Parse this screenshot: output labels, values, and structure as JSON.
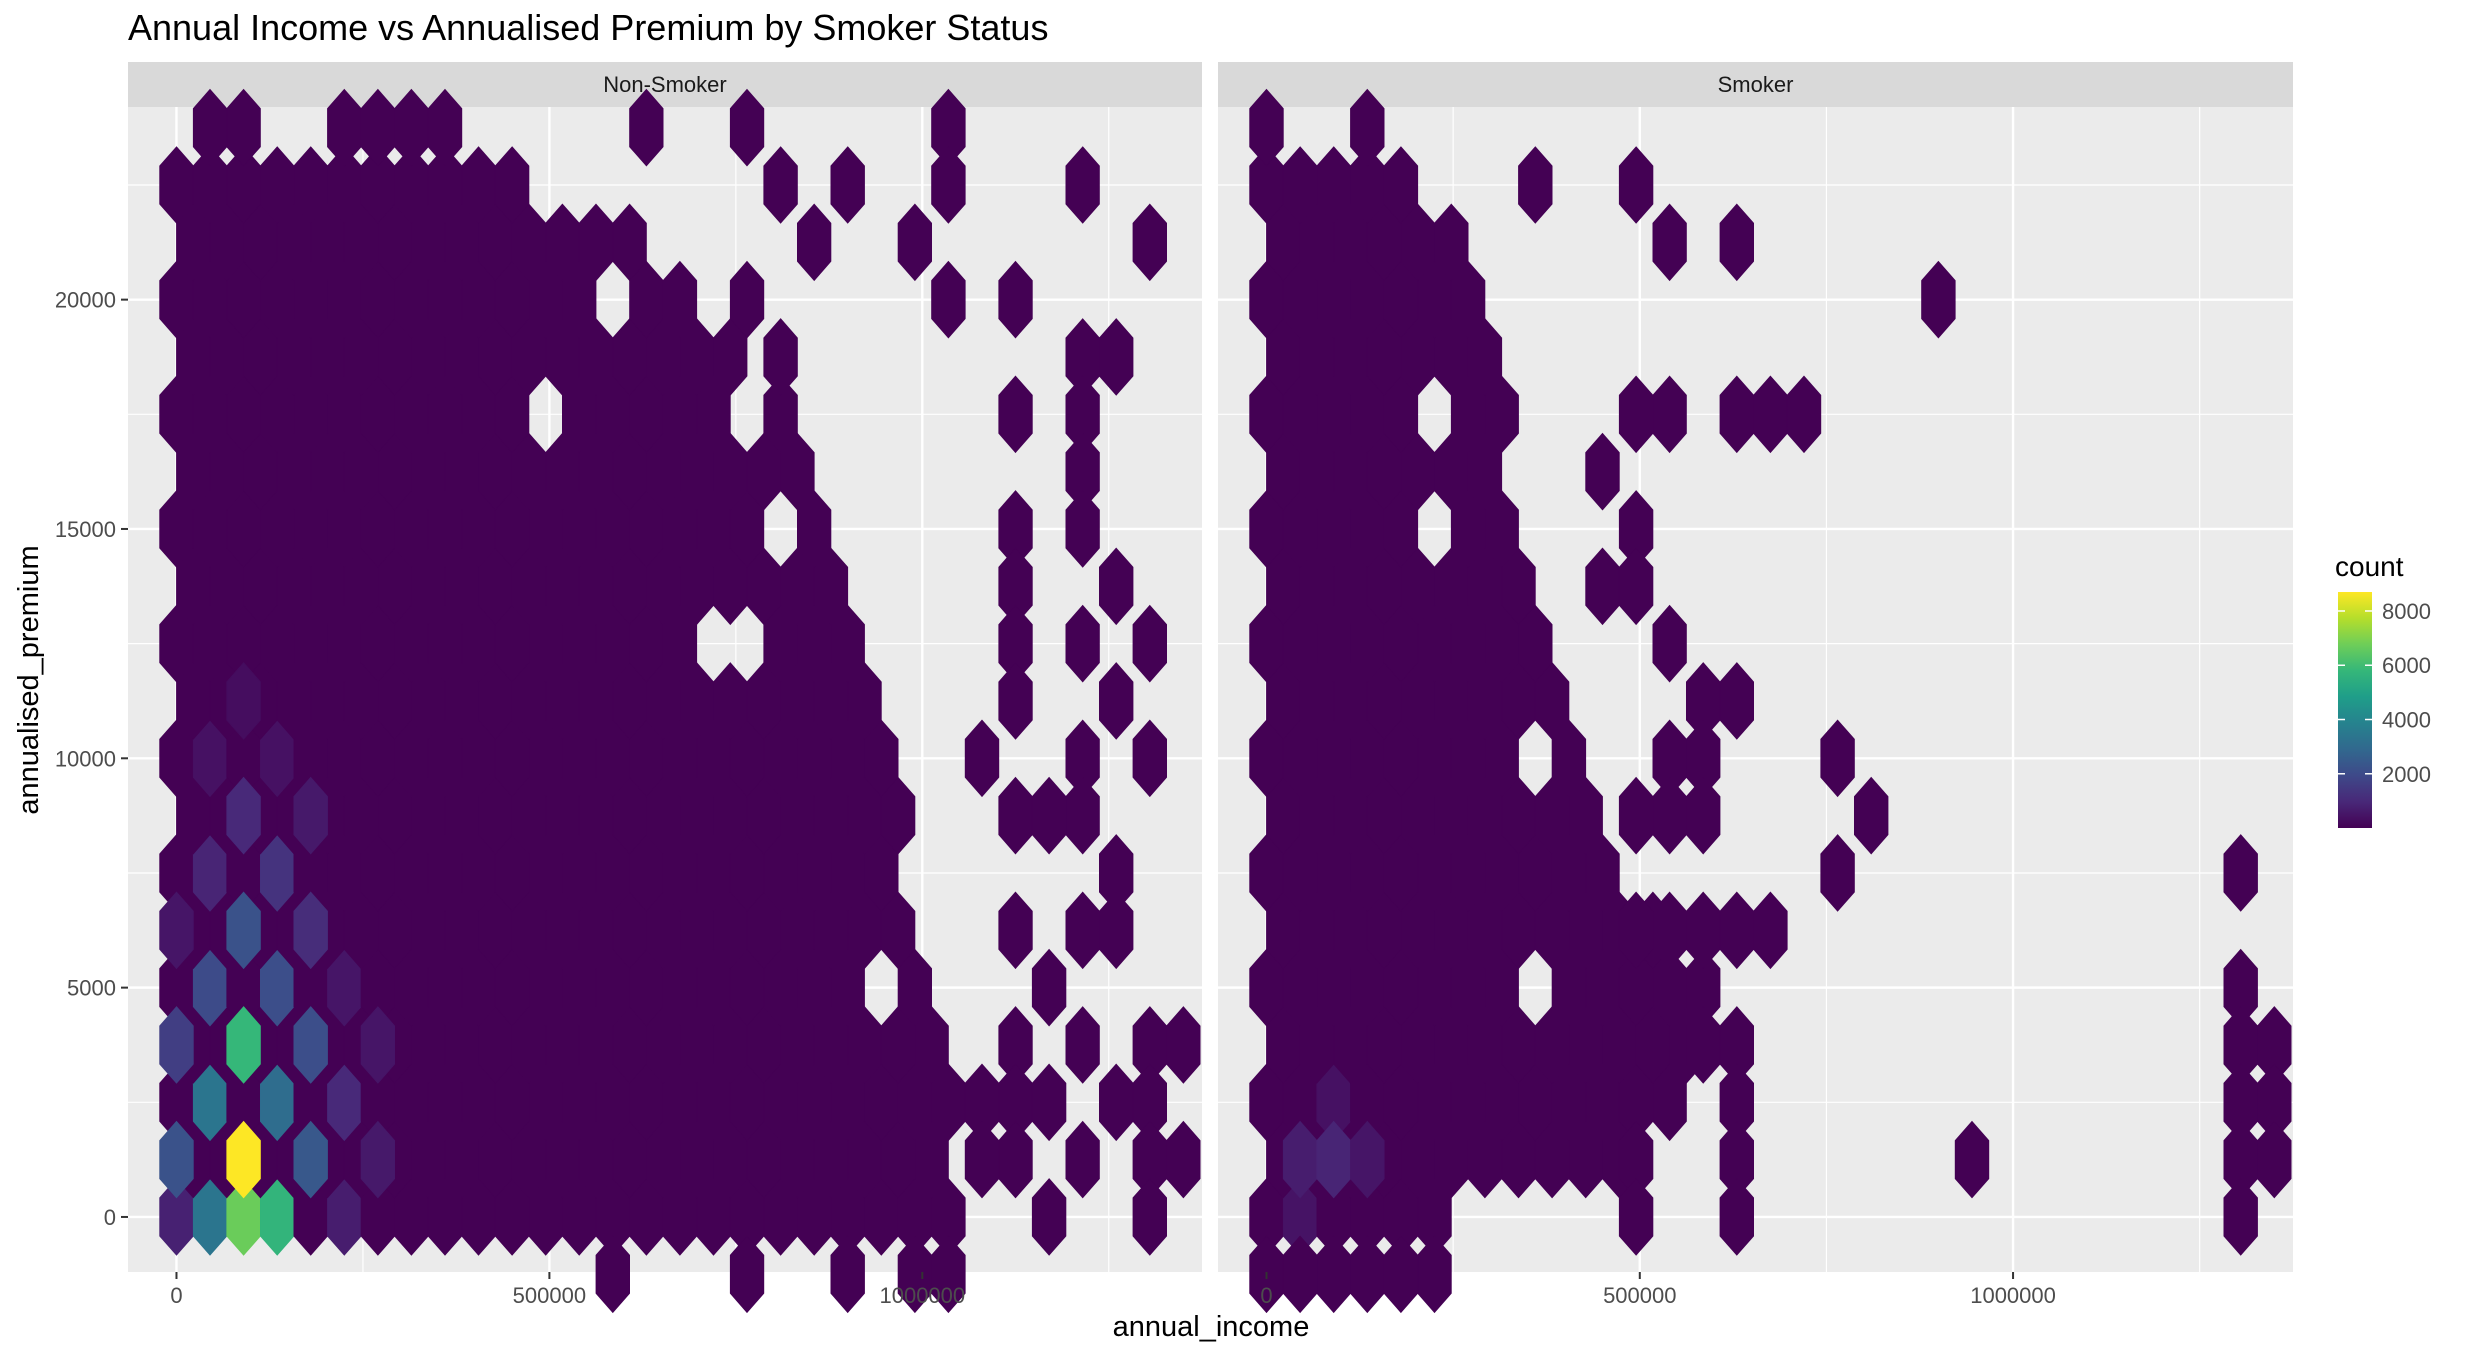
{
  "chart_data": {
    "type": "hexbin",
    "title": "Annual Income vs Annualised Premium by Smoker Status",
    "xlabel": "annual_income",
    "ylabel": "annualised_premium",
    "xlim": [
      -65000,
      1375000
    ],
    "ylim": [
      -1200,
      24200
    ],
    "x_ticks": [
      0,
      500000,
      1000000
    ],
    "x_tick_labels": [
      "0",
      "500000",
      "1000000"
    ],
    "y_ticks": [
      0,
      5000,
      10000,
      15000,
      20000
    ],
    "y_tick_labels": [
      "0",
      "5000",
      "10000",
      "15000",
      "20000"
    ],
    "grid": true,
    "legend": {
      "title": "count",
      "position": "right",
      "ticks": [
        2000,
        4000,
        6000,
        8000
      ],
      "tick_labels": [
        "2000",
        "4000",
        "6000",
        "8000"
      ],
      "range": [
        1,
        8700
      ],
      "palette": "viridis"
    },
    "hex": {
      "dx": 45000,
      "dy": 1250
    },
    "colors": {
      "panel_bg": "#ebebeb",
      "strip_bg": "#d9d9d9",
      "grid": "#ffffff",
      "viridis": [
        "#440154",
        "#482878",
        "#3e4989",
        "#31688e",
        "#26828e",
        "#1f9e89",
        "#35b779",
        "#6ece58",
        "#b5de2b",
        "#fde725"
      ]
    },
    "panels": [
      {
        "name": "Non-Smoker",
        "solid_region": {
          "x_from": 0,
          "y_from": 0,
          "y_to": 23000,
          "envelope": [
            [
              0,
              1045000
            ],
            [
              2500,
              1045000
            ],
            [
              7500,
              1000000
            ],
            [
              10000,
              950000
            ],
            [
              15000,
              890000
            ],
            [
              17500,
              830000
            ],
            [
              20000,
              700000
            ],
            [
              21500,
              600000
            ],
            [
              23000,
              420000
            ]
          ]
        },
        "density_cells": [
          [
            90000,
            1250,
            8700
          ],
          [
            90000,
            3750,
            5800
          ],
          [
            45000,
            2500,
            3400
          ],
          [
            135000,
            2500,
            3100
          ],
          [
            45000,
            0,
            3400
          ],
          [
            135000,
            0,
            5700
          ],
          [
            90000,
            0,
            6700
          ],
          [
            0,
            1250,
            2200
          ],
          [
            180000,
            1250,
            2400
          ],
          [
            0,
            3750,
            1600
          ],
          [
            180000,
            3750,
            2100
          ],
          [
            90000,
            6250,
            2200
          ],
          [
            45000,
            5000,
            2000
          ],
          [
            135000,
            5000,
            2100
          ],
          [
            0,
            0,
            800
          ],
          [
            45000,
            7500,
            900
          ],
          [
            135000,
            7500,
            1300
          ],
          [
            90000,
            8750,
            1000
          ],
          [
            180000,
            6250,
            1100
          ],
          [
            225000,
            2500,
            1000
          ],
          [
            225000,
            0,
            700
          ],
          [
            270000,
            1250,
            600
          ],
          [
            270000,
            3750,
            500
          ],
          [
            180000,
            8750,
            600
          ],
          [
            225000,
            5000,
            500
          ],
          [
            0,
            6250,
            500
          ],
          [
            45000,
            10000,
            400
          ],
          [
            135000,
            10000,
            400
          ],
          [
            90000,
            11250,
            300
          ]
        ],
        "extra_hexes": [
          [
            45000,
            23750
          ],
          [
            90000,
            23750
          ],
          [
            225000,
            23750
          ],
          [
            270000,
            23750
          ],
          [
            315000,
            23750
          ],
          [
            360000,
            23750
          ],
          [
            630000,
            23750
          ],
          [
            765000,
            23750
          ],
          [
            1035000,
            23750
          ],
          [
            900000,
            22500
          ],
          [
            810000,
            22500
          ],
          [
            1035000,
            22500
          ],
          [
            1215000,
            22500
          ],
          [
            855000,
            21250
          ],
          [
            990000,
            21250
          ],
          [
            1305000,
            21250
          ],
          [
            675000,
            20000
          ],
          [
            765000,
            20000
          ],
          [
            1035000,
            20000
          ],
          [
            1125000,
            20000
          ],
          [
            810000,
            18750
          ],
          [
            1215000,
            18750
          ],
          [
            1260000,
            18750
          ],
          [
            1125000,
            17500
          ],
          [
            1215000,
            17500
          ],
          [
            1215000,
            16250
          ],
          [
            1125000,
            15000
          ],
          [
            1215000,
            15000
          ],
          [
            1125000,
            13750
          ],
          [
            1260000,
            13750
          ],
          [
            1125000,
            12500
          ],
          [
            1215000,
            12500
          ],
          [
            1305000,
            12500
          ],
          [
            1260000,
            11250
          ],
          [
            1125000,
            11250
          ],
          [
            1215000,
            10000
          ],
          [
            1305000,
            10000
          ],
          [
            1080000,
            10000
          ],
          [
            1125000,
            8750
          ],
          [
            1215000,
            8750
          ],
          [
            1170000,
            8750
          ],
          [
            1260000,
            7500
          ],
          [
            1215000,
            6250
          ],
          [
            1260000,
            6250
          ],
          [
            1125000,
            6250
          ],
          [
            1170000,
            5000
          ],
          [
            1125000,
            3750
          ],
          [
            1215000,
            3750
          ],
          [
            1305000,
            3750
          ],
          [
            1350000,
            3750
          ],
          [
            1080000,
            2500
          ],
          [
            1125000,
            2500
          ],
          [
            1170000,
            2500
          ],
          [
            1260000,
            2500
          ],
          [
            1305000,
            2500
          ],
          [
            1350000,
            1250
          ],
          [
            1305000,
            1250
          ],
          [
            1215000,
            1250
          ],
          [
            1125000,
            1250
          ],
          [
            1080000,
            1250
          ],
          [
            1170000,
            0
          ],
          [
            1305000,
            0
          ],
          [
            765000,
            -1250
          ],
          [
            900000,
            -1250
          ],
          [
            990000,
            -1250
          ],
          [
            1035000,
            -1250
          ],
          [
            585000,
            -1250
          ]
        ],
        "holes": [
          [
            675000,
            18750
          ],
          [
            765000,
            17500
          ],
          [
            855000,
            16250
          ],
          [
            810000,
            15000
          ],
          [
            900000,
            15000
          ],
          [
            855000,
            13750
          ],
          [
            720000,
            12500
          ],
          [
            765000,
            12500
          ],
          [
            945000,
            12500
          ],
          [
            810000,
            11250
          ],
          [
            945000,
            8750
          ],
          [
            990000,
            7500
          ],
          [
            855000,
            6250
          ],
          [
            945000,
            5000
          ],
          [
            495000,
            17500
          ],
          [
            585000,
            20000
          ],
          [
            540000,
            18750
          ]
        ]
      },
      {
        "name": "Smoker",
        "solid_region": {
          "x_from": 0,
          "y_from": 0,
          "y_to": 23000,
          "envelope": [
            [
              0,
              240000
            ],
            [
              1250,
              510000
            ],
            [
              2500,
              560000
            ],
            [
              5000,
              620000
            ],
            [
              7500,
              470000
            ],
            [
              10000,
              420000
            ],
            [
              12500,
              360000
            ],
            [
              16250,
              330000
            ],
            [
              20000,
              300000
            ],
            [
              21250,
              280000
            ],
            [
              23000,
              180000
            ]
          ]
        },
        "density_cells": [
          [
            45000,
            1250,
            700
          ],
          [
            90000,
            1250,
            900
          ],
          [
            135000,
            1250,
            500
          ],
          [
            45000,
            0,
            450
          ],
          [
            90000,
            2500,
            400
          ]
        ],
        "extra_hexes": [
          [
            0,
            23750
          ],
          [
            135000,
            23750
          ],
          [
            360000,
            22500
          ],
          [
            495000,
            22500
          ],
          [
            540000,
            21250
          ],
          [
            630000,
            21250
          ],
          [
            900000,
            20000
          ],
          [
            630000,
            17500
          ],
          [
            675000,
            17500
          ],
          [
            720000,
            17500
          ],
          [
            495000,
            17500
          ],
          [
            540000,
            17500
          ],
          [
            450000,
            16250
          ],
          [
            495000,
            15000
          ],
          [
            450000,
            13750
          ],
          [
            495000,
            13750
          ],
          [
            540000,
            12500
          ],
          [
            585000,
            11250
          ],
          [
            630000,
            11250
          ],
          [
            585000,
            10000
          ],
          [
            540000,
            10000
          ],
          [
            495000,
            8750
          ],
          [
            540000,
            8750
          ],
          [
            585000,
            8750
          ],
          [
            765000,
            10000
          ],
          [
            810000,
            8750
          ],
          [
            765000,
            7500
          ],
          [
            495000,
            6250
          ],
          [
            540000,
            6250
          ],
          [
            585000,
            6250
          ],
          [
            630000,
            6250
          ],
          [
            675000,
            6250
          ],
          [
            585000,
            5000
          ],
          [
            495000,
            5000
          ],
          [
            630000,
            3750
          ],
          [
            585000,
            3750
          ],
          [
            495000,
            2500
          ],
          [
            540000,
            2500
          ],
          [
            630000,
            2500
          ],
          [
            495000,
            1250
          ],
          [
            630000,
            1250
          ],
          [
            495000,
            0
          ],
          [
            630000,
            0
          ],
          [
            945000,
            1250
          ],
          [
            1305000,
            7500
          ],
          [
            1305000,
            5000
          ],
          [
            1305000,
            3750
          ],
          [
            1350000,
            3750
          ],
          [
            1305000,
            2500
          ],
          [
            1350000,
            2500
          ],
          [
            1305000,
            1250
          ],
          [
            1350000,
            1250
          ],
          [
            1305000,
            0
          ],
          [
            225000,
            -1250
          ],
          [
            180000,
            -1250
          ],
          [
            135000,
            -1250
          ],
          [
            90000,
            -1250
          ],
          [
            45000,
            -1250
          ],
          [
            0,
            -1250
          ]
        ],
        "holes": [
          [
            90000,
            18750
          ],
          [
            270000,
            18750
          ],
          [
            225000,
            17500
          ],
          [
            270000,
            16250
          ],
          [
            225000,
            15000
          ],
          [
            315000,
            20000
          ],
          [
            360000,
            20000
          ],
          [
            270000,
            13750
          ],
          [
            405000,
            12500
          ],
          [
            315000,
            11250
          ],
          [
            360000,
            10000
          ],
          [
            405000,
            8750
          ],
          [
            450000,
            6250
          ],
          [
            360000,
            5000
          ],
          [
            315000,
            1250
          ],
          [
            450000,
            1250
          ],
          [
            405000,
            0
          ]
        ]
      }
    ]
  }
}
